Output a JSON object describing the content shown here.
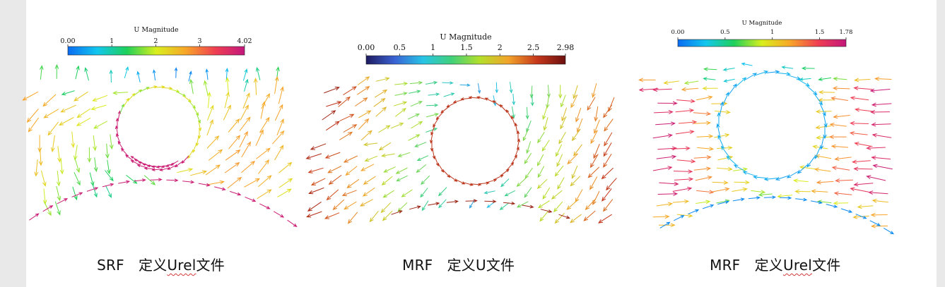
{
  "panels": [
    {
      "caption": {
        "pre": "SRF　定义",
        "urel": "Urel",
        "post": "文件"
      },
      "chart_data": {
        "type": "vector-field",
        "colorbar": {
          "title": "U Magnitude",
          "ticks": [
            "0.00",
            "1",
            "2",
            "3",
            "4.02"
          ],
          "range": [
            0.0,
            4.02
          ],
          "colormap": "blue-cyan-green-yellow-red-magenta",
          "colors": [
            "#0a6cf2",
            "#12c7ee",
            "#1ed05a",
            "#d9ef1e",
            "#f7a628",
            "#ef3f52",
            "#c3177c"
          ]
        },
        "blade_speed": 3.9,
        "outer_speed": 1.5,
        "shaft_speed": 2.4
      }
    },
    {
      "caption": {
        "pre": "MRF　定义U文件",
        "urel": "",
        "post": ""
      },
      "chart_data": {
        "type": "vector-field",
        "colorbar": {
          "title": "U Magnitude",
          "ticks": [
            "0.00",
            "0.5",
            "1",
            "1.5",
            "2",
            "2.5",
            "2.98"
          ],
          "range": [
            0.0,
            2.98
          ],
          "colormap": "darkblue-blue-cyan-green-yellow-orange-darkred",
          "colors": [
            "#1e1a5e",
            "#3a62d3",
            "#27c4e6",
            "#40d07a",
            "#b4df2a",
            "#f2a32a",
            "#c5381b",
            "#6c0f0f"
          ]
        },
        "blade_speed": 2.6,
        "outer_speed": 2.6,
        "shaft_speed": 2.6
      }
    },
    {
      "caption": {
        "pre": "MRF　定义",
        "urel": "Urel",
        "post": "文件"
      },
      "chart_data": {
        "type": "vector-field",
        "colorbar": {
          "title": "U Magnitude",
          "ticks": [
            "0.00",
            "0.5",
            "1",
            "1.5",
            "1.78"
          ],
          "range": [
            0.0,
            1.78
          ],
          "colormap": "blue-cyan-green-yellow-red-magenta",
          "colors": [
            "#0a6cf2",
            "#12c7ee",
            "#1ed05a",
            "#d9ef1e",
            "#f7a628",
            "#ef3f52",
            "#c3177c"
          ]
        },
        "blade_speed": 0.1,
        "outer_speed": 0.1,
        "shaft_speed": 0.1
      }
    }
  ]
}
